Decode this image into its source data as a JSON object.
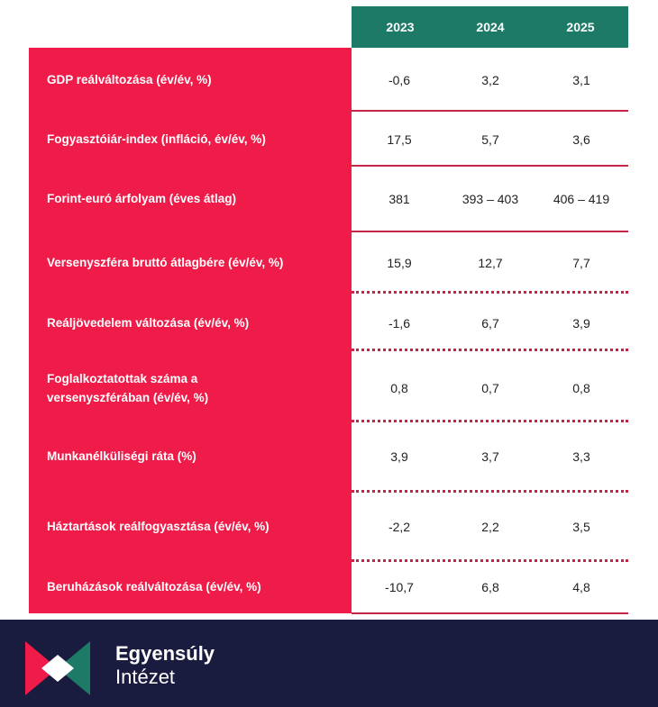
{
  "table": {
    "years": [
      "2023",
      "2024",
      "2025"
    ],
    "rows": [
      {
        "label": "GDP reálváltozása (év/év, %)",
        "values": [
          "-0,6",
          "3,2",
          "3,1"
        ]
      },
      {
        "label": "Fogyasztóiár-index (infláció, év/év, %)",
        "values": [
          "17,5",
          "5,7",
          "3,6"
        ]
      },
      {
        "label": "Forint-euró árfolyam (éves átlag)",
        "values": [
          "381",
          "393 – 403",
          "406 – 419"
        ]
      },
      {
        "label": "Versenyszféra bruttó átlagbére (év/év, %)",
        "values": [
          "15,9",
          "12,7",
          "7,7"
        ]
      },
      {
        "label": "Reáljövedelem változása (év/év, %)",
        "values": [
          "-1,6",
          "6,7",
          "3,9"
        ]
      },
      {
        "label": "Foglalkoztatottak száma a versenyszférában (év/év, %)",
        "values": [
          "0,8",
          "0,7",
          "0,8"
        ]
      },
      {
        "label": "Munkanélküliségi ráta (%)",
        "values": [
          "3,9",
          "3,7",
          "3,3"
        ]
      },
      {
        "label": "Háztartások reálfogyasztása (év/év, %)",
        "values": [
          "-2,2",
          "2,2",
          "3,5"
        ]
      },
      {
        "label": "Beruházások reálváltozása (év/év, %)",
        "values": [
          "-10,7",
          "6,8",
          "4,8"
        ]
      }
    ]
  },
  "footer": {
    "brand_line1": "Egyensúly",
    "brand_line2": "Intézet",
    "colors": {
      "navy": "#1a1c3f",
      "teal": "#1c7a66",
      "red": "#ef1b48"
    }
  }
}
